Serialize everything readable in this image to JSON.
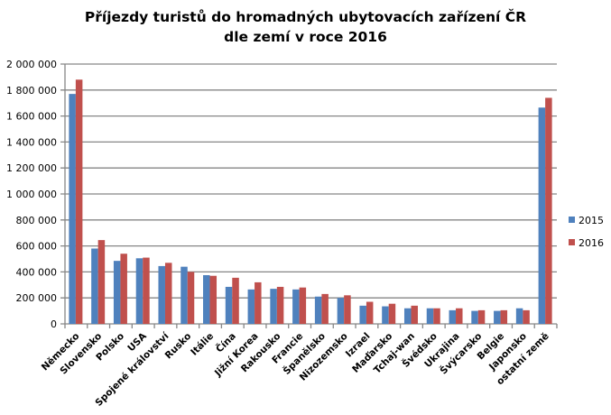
{
  "chart_data": {
    "type": "bar",
    "title": "Příjezdy turistů do hromadných ubytovacích zařízení ČR",
    "subtitle": "dle zemí v roce 2016",
    "xlabel": "",
    "ylabel": "",
    "ylim": [
      0,
      2000000
    ],
    "yticks": [
      0,
      200000,
      400000,
      600000,
      800000,
      1000000,
      1200000,
      1400000,
      1600000,
      1800000,
      2000000
    ],
    "ytick_labels": [
      "0",
      "200 000",
      "400 000",
      "600 000",
      "800 000",
      "1 000 000",
      "1 200 000",
      "1 400 000",
      "1 600 000",
      "1 800 000",
      "2 000 000"
    ],
    "grid": true,
    "legend_position": "right",
    "categories": [
      "Německo",
      "Slovensko",
      "Polsko",
      "USA",
      "Spojené království",
      "Rusko",
      "Itálie",
      "Čína",
      "Jižní Korea",
      "Rakousko",
      "Francie",
      "Španělsko",
      "Nizozemsko",
      "Izrael",
      "Maďarsko",
      "Tchaj-wan",
      "Švédsko",
      "Ukrajina",
      "Švýcarsko",
      "Belgie",
      "Japonsko",
      "ostatní země"
    ],
    "series": [
      {
        "name": "2015",
        "color": "#4F81BD",
        "values": [
          1770000,
          580000,
          485000,
          505000,
          445000,
          440000,
          375000,
          285000,
          265000,
          270000,
          265000,
          210000,
          200000,
          140000,
          135000,
          120000,
          120000,
          105000,
          100000,
          100000,
          120000,
          1665000
        ]
      },
      {
        "name": "2016",
        "color": "#C0504D",
        "values": [
          1880000,
          645000,
          540000,
          510000,
          470000,
          400000,
          370000,
          355000,
          320000,
          285000,
          280000,
          230000,
          220000,
          170000,
          155000,
          140000,
          120000,
          120000,
          105000,
          105000,
          105000,
          1740000
        ]
      }
    ]
  }
}
